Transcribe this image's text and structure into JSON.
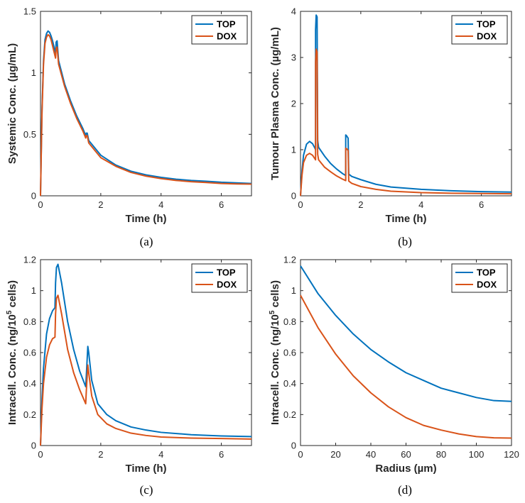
{
  "colors": {
    "TOP": "#0072BD",
    "DOX": "#D95319",
    "axis": "#262626"
  },
  "chart_data": [
    {
      "type": "line",
      "caption": "(a)",
      "xlabel": "Time (h)",
      "ylabel": "Systemic Conc. (µg/mL)",
      "xlim": [
        0,
        7
      ],
      "ylim": [
        0,
        1.5
      ],
      "xticks": [
        0,
        2,
        4,
        6
      ],
      "xtick_labels": [
        "0",
        "2",
        "4",
        "6"
      ],
      "yticks": [
        0,
        0.5,
        1,
        1.5
      ],
      "ytick_labels": [
        "0",
        "0.5",
        "1",
        "1.5"
      ],
      "legend": "top-right",
      "grid": false,
      "series": [
        {
          "name": "TOP",
          "x": [
            0,
            0.05,
            0.1,
            0.15,
            0.2,
            0.25,
            0.3,
            0.35,
            0.4,
            0.45,
            0.5,
            0.52,
            0.55,
            0.6,
            0.8,
            1.0,
            1.2,
            1.4,
            1.5,
            1.52,
            1.55,
            1.6,
            1.8,
            2.0,
            2.5,
            3.0,
            3.5,
            4.0,
            4.5,
            5.0,
            5.5,
            6.0,
            6.5,
            7.0
          ],
          "y": [
            0,
            0.7,
            1.1,
            1.27,
            1.32,
            1.34,
            1.33,
            1.3,
            1.26,
            1.21,
            1.16,
            1.25,
            1.26,
            1.1,
            0.91,
            0.77,
            0.65,
            0.55,
            0.49,
            0.51,
            0.51,
            0.45,
            0.39,
            0.33,
            0.25,
            0.2,
            0.17,
            0.15,
            0.135,
            0.125,
            0.118,
            0.11,
            0.105,
            0.1
          ]
        },
        {
          "name": "DOX",
          "x": [
            0,
            0.05,
            0.1,
            0.15,
            0.2,
            0.25,
            0.3,
            0.35,
            0.4,
            0.45,
            0.5,
            0.52,
            0.55,
            0.6,
            0.8,
            1.0,
            1.2,
            1.4,
            1.5,
            1.52,
            1.55,
            1.6,
            1.8,
            2.0,
            2.5,
            3.0,
            3.5,
            4.0,
            4.5,
            5.0,
            5.5,
            6.0,
            6.5,
            7.0
          ],
          "y": [
            0,
            0.68,
            1.07,
            1.24,
            1.29,
            1.31,
            1.3,
            1.27,
            1.22,
            1.17,
            1.12,
            1.2,
            1.21,
            1.07,
            0.89,
            0.75,
            0.63,
            0.53,
            0.47,
            0.49,
            0.49,
            0.43,
            0.37,
            0.31,
            0.24,
            0.19,
            0.16,
            0.14,
            0.125,
            0.115,
            0.108,
            0.1,
            0.097,
            0.095
          ]
        }
      ]
    },
    {
      "type": "line",
      "caption": "(b)",
      "xlabel": "Time (h)",
      "ylabel": "Tumour Plasma Conc. (µg/mL)",
      "xlim": [
        0,
        7
      ],
      "ylim": [
        0,
        4
      ],
      "xticks": [
        0,
        2,
        4,
        6
      ],
      "xtick_labels": [
        "0",
        "2",
        "4",
        "6"
      ],
      "yticks": [
        0,
        1,
        2,
        3,
        4
      ],
      "ytick_labels": [
        "0",
        "1",
        "2",
        "3",
        "4"
      ],
      "legend": "top-right",
      "grid": false,
      "series": [
        {
          "name": "TOP",
          "x": [
            0,
            0.05,
            0.1,
            0.2,
            0.3,
            0.4,
            0.48,
            0.5,
            0.5,
            0.52,
            0.55,
            0.57,
            0.6,
            0.8,
            1.0,
            1.2,
            1.4,
            1.5,
            1.5,
            1.53,
            1.58,
            1.6,
            1.7,
            2.0,
            2.5,
            3.0,
            4.0,
            5.0,
            6.0,
            7.0
          ],
          "y": [
            0,
            0.55,
            0.88,
            1.12,
            1.18,
            1.13,
            1.03,
            1.0,
            3.6,
            3.92,
            3.88,
            1.2,
            1.05,
            0.86,
            0.7,
            0.58,
            0.48,
            0.44,
            1.32,
            1.3,
            1.25,
            0.47,
            0.42,
            0.35,
            0.25,
            0.19,
            0.14,
            0.11,
            0.09,
            0.08
          ]
        },
        {
          "name": "DOX",
          "x": [
            0,
            0.05,
            0.1,
            0.2,
            0.3,
            0.4,
            0.48,
            0.5,
            0.5,
            0.52,
            0.55,
            0.57,
            0.6,
            0.8,
            1.0,
            1.2,
            1.4,
            1.5,
            1.5,
            1.53,
            1.58,
            1.6,
            1.7,
            2.0,
            2.5,
            3.0,
            4.0,
            5.0,
            6.0,
            7.0
          ],
          "y": [
            0,
            0.45,
            0.72,
            0.88,
            0.92,
            0.88,
            0.8,
            0.78,
            2.9,
            3.18,
            3.12,
            0.9,
            0.78,
            0.62,
            0.52,
            0.43,
            0.36,
            0.33,
            1.03,
            1.02,
            0.98,
            0.32,
            0.27,
            0.2,
            0.14,
            0.1,
            0.07,
            0.055,
            0.05,
            0.045
          ]
        }
      ]
    },
    {
      "type": "line",
      "caption": "(c)",
      "xlabel": "Time (h)",
      "ylabel": "Intracell. Conc. (ng/10^5 cells)",
      "xlim": [
        0,
        7
      ],
      "ylim": [
        0,
        1.2
      ],
      "xticks": [
        0,
        2,
        4,
        6
      ],
      "xtick_labels": [
        "0",
        "2",
        "4",
        "6"
      ],
      "yticks": [
        0,
        0.2,
        0.4,
        0.6,
        0.8,
        1,
        1.2
      ],
      "ytick_labels": [
        "0",
        "0.2",
        "0.4",
        "0.6",
        "0.8",
        "1",
        "1.2"
      ],
      "legend": "top-right",
      "grid": false,
      "series": [
        {
          "name": "TOP",
          "x": [
            0,
            0.05,
            0.1,
            0.2,
            0.3,
            0.4,
            0.48,
            0.5,
            0.53,
            0.58,
            0.7,
            0.9,
            1.1,
            1.3,
            1.5,
            1.52,
            1.57,
            1.6,
            1.7,
            1.9,
            2.2,
            2.5,
            3.0,
            3.5,
            4.0,
            5.0,
            6.0,
            7.0
          ],
          "y": [
            0,
            0.3,
            0.5,
            0.72,
            0.82,
            0.87,
            0.89,
            1.05,
            1.15,
            1.17,
            1.05,
            0.8,
            0.62,
            0.48,
            0.38,
            0.45,
            0.64,
            0.6,
            0.42,
            0.27,
            0.2,
            0.16,
            0.12,
            0.1,
            0.085,
            0.07,
            0.062,
            0.058
          ]
        },
        {
          "name": "DOX",
          "x": [
            0,
            0.05,
            0.1,
            0.2,
            0.3,
            0.4,
            0.48,
            0.5,
            0.53,
            0.58,
            0.7,
            0.9,
            1.1,
            1.3,
            1.5,
            1.52,
            1.57,
            1.6,
            1.7,
            1.9,
            2.2,
            2.5,
            3.0,
            3.5,
            4.0,
            5.0,
            6.0,
            7.0
          ],
          "y": [
            0,
            0.24,
            0.4,
            0.57,
            0.65,
            0.69,
            0.7,
            0.85,
            0.95,
            0.97,
            0.85,
            0.62,
            0.47,
            0.36,
            0.27,
            0.35,
            0.52,
            0.47,
            0.32,
            0.2,
            0.14,
            0.11,
            0.08,
            0.065,
            0.055,
            0.048,
            0.045,
            0.042
          ]
        }
      ]
    },
    {
      "type": "line",
      "caption": "(d)",
      "xlabel": "Radius (µm)",
      "ylabel": "Intracell. Conc. (ng/10^5 cells)",
      "xlim": [
        0,
        120
      ],
      "ylim": [
        0,
        1.2
      ],
      "xticks": [
        0,
        20,
        40,
        60,
        80,
        100,
        120
      ],
      "xtick_labels": [
        "0",
        "20",
        "40",
        "60",
        "80",
        "100",
        "120"
      ],
      "yticks": [
        0,
        0.2,
        0.4,
        0.6,
        0.8,
        1,
        1.2
      ],
      "ytick_labels": [
        "0",
        "0.2",
        "0.4",
        "0.6",
        "0.8",
        "1",
        "1.2"
      ],
      "legend": "top-right",
      "grid": false,
      "series": [
        {
          "name": "TOP",
          "x": [
            0,
            10,
            20,
            30,
            40,
            50,
            60,
            70,
            80,
            90,
            100,
            110,
            120
          ],
          "y": [
            1.16,
            0.98,
            0.84,
            0.72,
            0.62,
            0.54,
            0.47,
            0.42,
            0.37,
            0.34,
            0.31,
            0.29,
            0.285
          ]
        },
        {
          "name": "DOX",
          "x": [
            0,
            10,
            20,
            30,
            40,
            50,
            60,
            70,
            80,
            90,
            100,
            110,
            120
          ],
          "y": [
            0.97,
            0.76,
            0.59,
            0.45,
            0.34,
            0.25,
            0.18,
            0.13,
            0.1,
            0.075,
            0.058,
            0.05,
            0.048
          ]
        }
      ]
    }
  ]
}
